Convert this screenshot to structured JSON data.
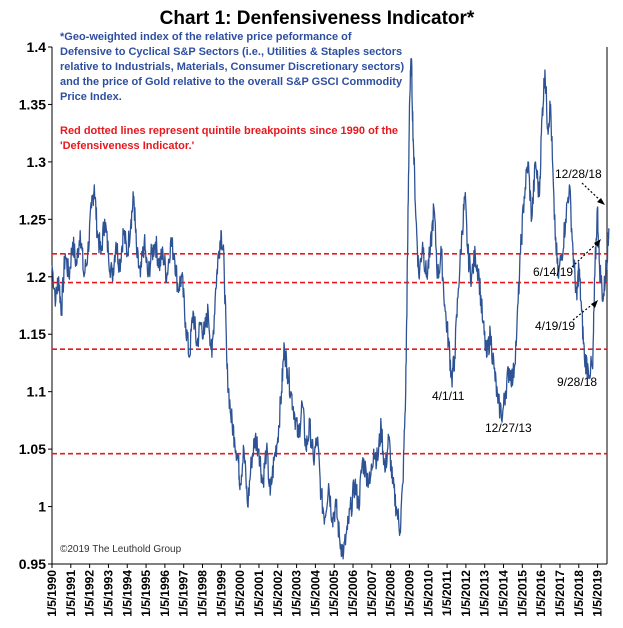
{
  "chart_data": {
    "type": "line",
    "title": "Chart 1: Denfensiveness Indicator*",
    "ylim": [
      0.95,
      1.4
    ],
    "y_ticks": [
      0.95,
      1,
      1.05,
      1.1,
      1.15,
      1.2,
      1.25,
      1.3,
      1.35,
      1.4
    ],
    "y_tick_labels": [
      "0.95",
      "1",
      "1.05",
      "1.1",
      "1.15",
      "1.2",
      "1.25",
      "1.3",
      "1.35",
      "1.4"
    ],
    "x_range": [
      1990.0,
      2019.5
    ],
    "x_tick_labels": [
      "1/5/1990",
      "1/5/1991",
      "1/5/1992",
      "1/5/1993",
      "1/5/1994",
      "1/5/1995",
      "1/5/1996",
      "1/5/1997",
      "1/5/1998",
      "1/5/1999",
      "1/5/2000",
      "1/5/2001",
      "1/5/2002",
      "1/5/2003",
      "1/5/2004",
      "1/5/2005",
      "1/5/2006",
      "1/5/2007",
      "1/5/2008",
      "1/5/2009",
      "1/5/2010",
      "1/5/2011",
      "1/5/2012",
      "1/5/2013",
      "1/5/2014",
      "1/5/2015",
      "1/5/2016",
      "1/5/2017",
      "1/5/2018",
      "1/5/2019"
    ],
    "series": [
      {
        "name": "Defensiveness Indicator",
        "color": "#2E5395",
        "points": [
          [
            1990.0,
            1.21
          ],
          [
            1990.2,
            1.18
          ],
          [
            1990.35,
            1.2
          ],
          [
            1990.5,
            1.17
          ],
          [
            1990.7,
            1.22
          ],
          [
            1990.9,
            1.2
          ],
          [
            1991.1,
            1.23
          ],
          [
            1991.3,
            1.21
          ],
          [
            1991.5,
            1.24
          ],
          [
            1991.7,
            1.2
          ],
          [
            1991.9,
            1.22
          ],
          [
            1992.1,
            1.26
          ],
          [
            1992.25,
            1.28
          ],
          [
            1992.4,
            1.24
          ],
          [
            1992.6,
            1.22
          ],
          [
            1992.8,
            1.25
          ],
          [
            1993.0,
            1.22
          ],
          [
            1993.2,
            1.2
          ],
          [
            1993.4,
            1.23
          ],
          [
            1993.6,
            1.21
          ],
          [
            1993.8,
            1.24
          ],
          [
            1994.0,
            1.22
          ],
          [
            1994.2,
            1.25
          ],
          [
            1994.35,
            1.27
          ],
          [
            1994.5,
            1.22
          ],
          [
            1994.7,
            1.2
          ],
          [
            1994.9,
            1.23
          ],
          [
            1995.1,
            1.2
          ],
          [
            1995.3,
            1.22
          ],
          [
            1995.5,
            1.23
          ],
          [
            1995.7,
            1.21
          ],
          [
            1995.9,
            1.22
          ],
          [
            1996.1,
            1.2
          ],
          [
            1996.3,
            1.23
          ],
          [
            1996.5,
            1.22
          ],
          [
            1996.7,
            1.19
          ],
          [
            1996.9,
            1.2
          ],
          [
            1997.1,
            1.16
          ],
          [
            1997.3,
            1.13
          ],
          [
            1997.5,
            1.17
          ],
          [
            1997.7,
            1.14
          ],
          [
            1997.9,
            1.16
          ],
          [
            1998.1,
            1.15
          ],
          [
            1998.3,
            1.17
          ],
          [
            1998.5,
            1.13
          ],
          [
            1998.7,
            1.19
          ],
          [
            1998.85,
            1.22
          ],
          [
            1999.0,
            1.24
          ],
          [
            1999.15,
            1.21
          ],
          [
            1999.3,
            1.12
          ],
          [
            1999.5,
            1.08
          ],
          [
            1999.7,
            1.06
          ],
          [
            1999.9,
            1.04
          ],
          [
            2000.0,
            1.02
          ],
          [
            2000.2,
            1.05
          ],
          [
            2000.4,
            1.0
          ],
          [
            2000.6,
            1.04
          ],
          [
            2000.8,
            1.06
          ],
          [
            2001.0,
            1.05
          ],
          [
            2001.2,
            1.02
          ],
          [
            2001.4,
            1.05
          ],
          [
            2001.6,
            1.01
          ],
          [
            2001.8,
            1.04
          ],
          [
            2002.0,
            1.06
          ],
          [
            2002.2,
            1.1
          ],
          [
            2002.35,
            1.14
          ],
          [
            2002.5,
            1.12
          ],
          [
            2002.7,
            1.1
          ],
          [
            2002.9,
            1.08
          ],
          [
            2003.1,
            1.06
          ],
          [
            2003.3,
            1.09
          ],
          [
            2003.5,
            1.05
          ],
          [
            2003.7,
            1.07
          ],
          [
            2003.9,
            1.04
          ],
          [
            2004.1,
            1.06
          ],
          [
            2004.3,
            1.01
          ],
          [
            2004.5,
            0.99
          ],
          [
            2004.7,
            1.02
          ],
          [
            2004.9,
            0.99
          ],
          [
            2005.1,
            1.0
          ],
          [
            2005.3,
            0.97
          ],
          [
            2005.5,
            0.96
          ],
          [
            2005.7,
            0.98
          ],
          [
            2005.9,
            1.0
          ],
          [
            2006.1,
            1.02
          ],
          [
            2006.3,
            1.0
          ],
          [
            2006.5,
            1.04
          ],
          [
            2006.7,
            1.03
          ],
          [
            2006.9,
            1.02
          ],
          [
            2007.1,
            1.05
          ],
          [
            2007.3,
            1.04
          ],
          [
            2007.5,
            1.07
          ],
          [
            2007.7,
            1.03
          ],
          [
            2007.9,
            1.06
          ],
          [
            2008.1,
            1.02
          ],
          [
            2008.3,
            1.0
          ],
          [
            2008.5,
            0.98
          ],
          [
            2008.65,
            1.02
          ],
          [
            2008.8,
            1.1
          ],
          [
            2008.9,
            1.22
          ],
          [
            2009.0,
            1.35
          ],
          [
            2009.1,
            1.39
          ],
          [
            2009.2,
            1.32
          ],
          [
            2009.35,
            1.25
          ],
          [
            2009.5,
            1.2
          ],
          [
            2009.7,
            1.23
          ],
          [
            2009.9,
            1.2
          ],
          [
            2010.1,
            1.22
          ],
          [
            2010.3,
            1.26
          ],
          [
            2010.5,
            1.2
          ],
          [
            2010.7,
            1.22
          ],
          [
            2010.9,
            1.17
          ],
          [
            2011.1,
            1.14
          ],
          [
            2011.25,
            1.11
          ],
          [
            2011.4,
            1.13
          ],
          [
            2011.6,
            1.19
          ],
          [
            2011.8,
            1.24
          ],
          [
            2011.95,
            1.27
          ],
          [
            2012.1,
            1.22
          ],
          [
            2012.3,
            1.2
          ],
          [
            2012.5,
            1.22
          ],
          [
            2012.7,
            1.2
          ],
          [
            2012.9,
            1.16
          ],
          [
            2013.1,
            1.13
          ],
          [
            2013.3,
            1.15
          ],
          [
            2013.5,
            1.12
          ],
          [
            2013.7,
            1.09
          ],
          [
            2013.95,
            1.08
          ],
          [
            2014.1,
            1.1
          ],
          [
            2014.3,
            1.12
          ],
          [
            2014.5,
            1.11
          ],
          [
            2014.7,
            1.15
          ],
          [
            2014.9,
            1.22
          ],
          [
            2015.1,
            1.27
          ],
          [
            2015.3,
            1.3
          ],
          [
            2015.5,
            1.25
          ],
          [
            2015.7,
            1.3
          ],
          [
            2015.9,
            1.27
          ],
          [
            2016.05,
            1.34
          ],
          [
            2016.2,
            1.38
          ],
          [
            2016.35,
            1.33
          ],
          [
            2016.5,
            1.35
          ],
          [
            2016.7,
            1.25
          ],
          [
            2016.9,
            1.2
          ],
          [
            2017.1,
            1.22
          ],
          [
            2017.3,
            1.25
          ],
          [
            2017.5,
            1.28
          ],
          [
            2017.7,
            1.22
          ],
          [
            2017.9,
            1.18
          ],
          [
            2018.0,
            1.21
          ],
          [
            2018.15,
            1.17
          ],
          [
            2018.3,
            1.13
          ],
          [
            2018.5,
            1.12
          ],
          [
            2018.74,
            1.12
          ],
          [
            2018.85,
            1.2
          ],
          [
            2018.99,
            1.26
          ],
          [
            2019.1,
            1.21
          ],
          [
            2019.3,
            1.18
          ],
          [
            2019.46,
            1.21
          ],
          [
            2019.55,
            1.23
          ],
          [
            2019.6,
            1.24
          ]
        ]
      }
    ],
    "quintile_lines": {
      "color": "#E8181E",
      "values": [
        1.22,
        1.195,
        1.137,
        1.046
      ]
    },
    "annotations": [
      {
        "label": "4/1/11",
        "x": 2011.25,
        "y": 1.11
      },
      {
        "label": "12/27/13",
        "x": 2013.99,
        "y": 1.08
      },
      {
        "label": "12/28/18",
        "x": 2018.99,
        "y": 1.26
      },
      {
        "label": "6/14/19",
        "x": 2019.45,
        "y": 1.21
      },
      {
        "label": "4/19/19",
        "x": 2019.3,
        "y": 1.18
      },
      {
        "label": "9/28/18",
        "x": 2018.74,
        "y": 1.12
      }
    ],
    "notes": {
      "blue_lines": [
        "*Geo-weighted index of the relative price peformance of",
        "Defensive to Cyclical S&P Sectors (i.e., Utilities & Staples sectors",
        "relative to Industrials,  Materials, Consumer Discretionary sectors)",
        "and the price of Gold relative to the overall S&P GSCI Commodity",
        "Price Index."
      ],
      "red_lines": [
        "Red dotted lines represent quintile breakpoints since 1990 of the",
        "'Defensiveness Indicator.'"
      ]
    },
    "copyright": "©2019 The Leuthold Group"
  }
}
